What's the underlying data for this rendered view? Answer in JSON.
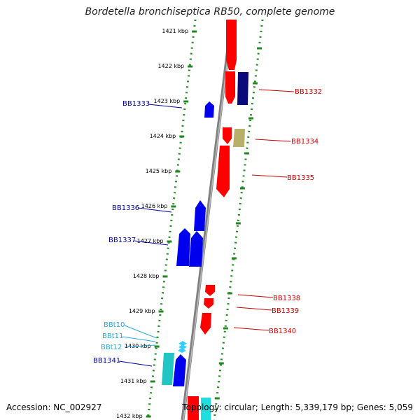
{
  "title": "Bordetella bronchiseptica RB50, complete genome",
  "accession": "Accession: NC_002927",
  "topology": "Topology: circular; Length: 5,339,179 bp; Genes: 5,059",
  "ruler": [
    "1421 kbp",
    "1422 kbp",
    "1423 kbp",
    "1424 kbp",
    "1425 kbp",
    "1426 kbp",
    "1427 kbp",
    "1428 kbp",
    "1429 kbp",
    "1430 kbp",
    "1431 kbp",
    "1432 kbp"
  ],
  "genes_right": [
    {
      "label": "BB1332",
      "color": "#cc0000"
    },
    {
      "label": "BB1334",
      "color": "#cc0000"
    },
    {
      "label": "BB1335",
      "color": "#cc0000"
    },
    {
      "label": "BB1338",
      "color": "#cc0000"
    },
    {
      "label": "BB1339",
      "color": "#cc0000"
    },
    {
      "label": "BB1340",
      "color": "#cc0000"
    }
  ],
  "genes_left": [
    {
      "label": "BB1333",
      "color": "#000099"
    },
    {
      "label": "BB1336",
      "color": "#000099"
    },
    {
      "label": "BB1337",
      "color": "#000099"
    },
    {
      "label": "BBt10",
      "color": "#2aa8d8"
    },
    {
      "label": "BBt11",
      "color": "#2aa8d8"
    },
    {
      "label": "BBt12",
      "color": "#2aa8d8"
    },
    {
      "label": "BB1341",
      "color": "#000099"
    }
  ],
  "colors": {
    "backbone": "#888888",
    "dots": "#228822",
    "forward": "#ff0000",
    "reverse": "#0000ee",
    "trna": "#33ccff",
    "dark": "#0a0a7a",
    "khaki": "#b8b06a",
    "teal": "#22c4c4"
  }
}
